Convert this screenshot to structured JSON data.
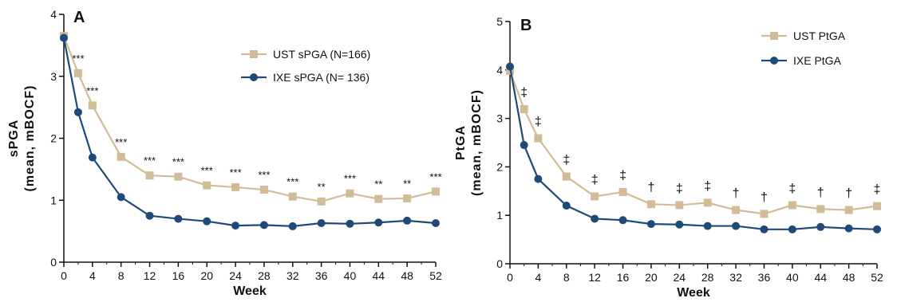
{
  "chart_data": [
    {
      "type": "line",
      "panel_label": "A",
      "xlabel": "Week",
      "ylabel_line1": "sPGA",
      "ylabel_line2": "(mean, mBOCF)",
      "xlim": [
        0,
        52
      ],
      "ylim": [
        0,
        4
      ],
      "xticks": [
        "0",
        "4",
        "8",
        "12",
        "16",
        "20",
        "24",
        "28",
        "32",
        "36",
        "40",
        "44",
        "48",
        "52"
      ],
      "yticks": [
        "0",
        "1",
        "2",
        "3",
        "4"
      ],
      "legend_position": "top-right",
      "series": [
        {
          "name": "UST sPGA (N=166)",
          "color": "#d2bc98",
          "marker": "square",
          "x": [
            0,
            2,
            4,
            8,
            12,
            16,
            20,
            24,
            28,
            32,
            36,
            40,
            44,
            48,
            52
          ],
          "values": [
            3.65,
            3.05,
            2.53,
            1.7,
            1.4,
            1.38,
            1.24,
            1.21,
            1.17,
            1.06,
            0.98,
            1.11,
            1.02,
            1.03,
            1.14
          ]
        },
        {
          "name": "IXE sPGA (N= 136)",
          "color": "#1f4a78",
          "marker": "circle",
          "x": [
            0,
            2,
            4,
            8,
            12,
            16,
            20,
            24,
            28,
            32,
            36,
            40,
            44,
            48,
            52
          ],
          "values": [
            3.62,
            2.42,
            1.69,
            1.05,
            0.75,
            0.7,
            0.66,
            0.59,
            0.6,
            0.58,
            0.63,
            0.62,
            0.64,
            0.67,
            0.63
          ]
        }
      ],
      "annotations": [
        "***",
        "***",
        "***",
        "***",
        "***",
        "***",
        "***",
        "***",
        "***",
        "**",
        "***",
        "**",
        "**",
        "***"
      ]
    },
    {
      "type": "line",
      "panel_label": "B",
      "xlabel": "Week",
      "ylabel_line1": "PtGA",
      "ylabel_line2": "(mean, mBOCF)",
      "xlim": [
        0,
        52
      ],
      "ylim": [
        0,
        5
      ],
      "xticks": [
        "0",
        "4",
        "8",
        "12",
        "16",
        "20",
        "24",
        "28",
        "32",
        "36",
        "40",
        "44",
        "48",
        "52"
      ],
      "yticks": [
        "0",
        "1",
        "2",
        "3",
        "4",
        "5"
      ],
      "legend_position": "top-right",
      "series": [
        {
          "name": "UST PtGA",
          "color": "#d2bc98",
          "marker": "square",
          "x": [
            0,
            2,
            4,
            8,
            12,
            16,
            20,
            24,
            28,
            32,
            36,
            40,
            44,
            48,
            52
          ],
          "values": [
            3.98,
            3.19,
            2.59,
            1.8,
            1.39,
            1.48,
            1.23,
            1.21,
            1.26,
            1.11,
            1.03,
            1.21,
            1.13,
            1.11,
            1.19
          ]
        },
        {
          "name": "IXE PtGA",
          "color": "#1f4a78",
          "marker": "circle",
          "x": [
            0,
            2,
            4,
            8,
            12,
            16,
            20,
            24,
            28,
            32,
            36,
            40,
            44,
            48,
            52
          ],
          "values": [
            4.07,
            2.45,
            1.75,
            1.2,
            0.93,
            0.9,
            0.82,
            0.81,
            0.78,
            0.78,
            0.71,
            0.71,
            0.76,
            0.73,
            0.71
          ]
        }
      ],
      "annotations": [
        "‡",
        "‡",
        "‡",
        "‡",
        "‡",
        "†",
        "‡",
        "‡",
        "†",
        "†",
        "‡",
        "†",
        "†",
        "‡"
      ]
    }
  ]
}
